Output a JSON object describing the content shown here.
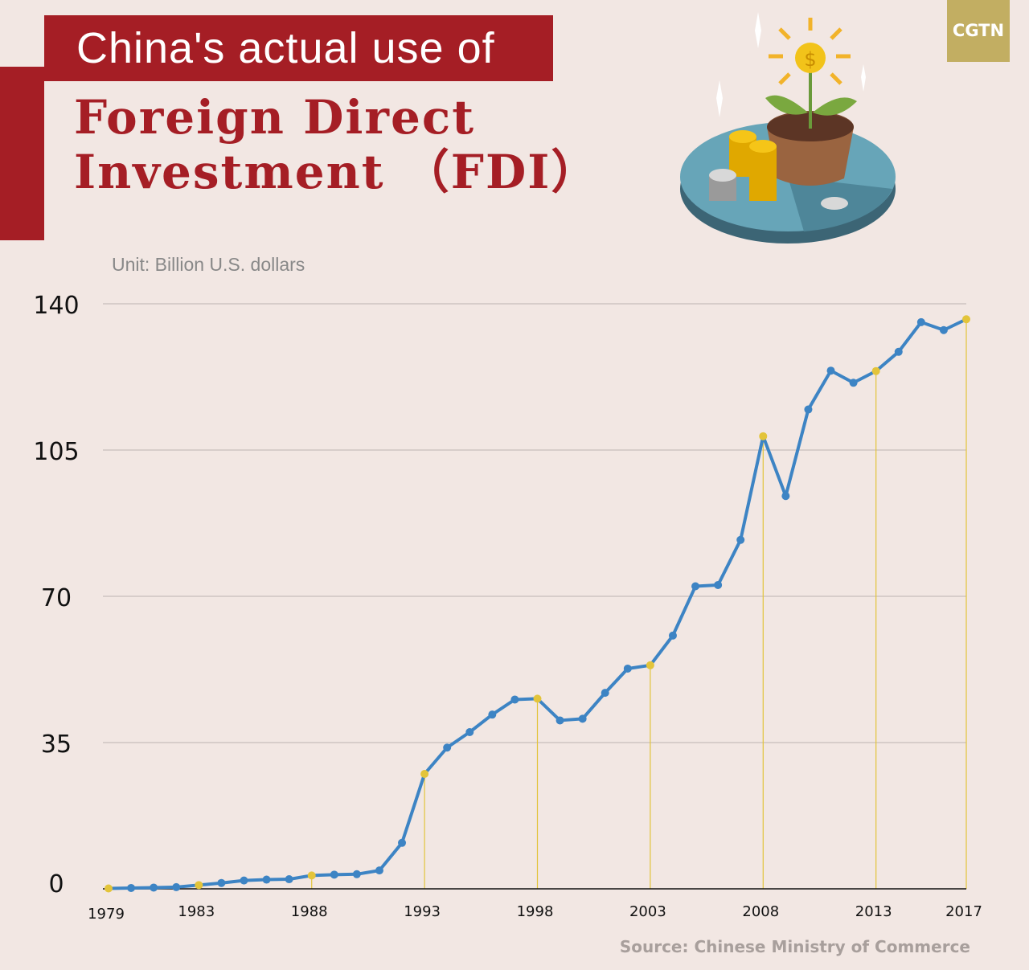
{
  "header": {
    "line1": "China's actual use of",
    "line2": "Foreign Direct",
    "line3": "Investment （FDI）",
    "logo": "CGTN",
    "unit": "Unit: Billion U.S. dollars",
    "source": "Source: Chinese Ministry of Commerce"
  },
  "colors": {
    "line": "#3d84c4",
    "highlight": "#e3c43a",
    "brand": "#a51e25",
    "logo_bg": "#c2ae62"
  },
  "chart_data": {
    "type": "line",
    "title": "China's actual use of Foreign Direct Investment (FDI)",
    "ylabel": "Unit: Billion U.S. dollars",
    "ylim": [
      0,
      140
    ],
    "yticks": [
      0,
      35,
      70,
      105,
      140
    ],
    "xticks": [
      1979,
      1983,
      1988,
      1993,
      1998,
      2003,
      2008,
      2013,
      2017
    ],
    "grid": true,
    "x": [
      1979,
      1980,
      1981,
      1982,
      1983,
      1984,
      1985,
      1986,
      1987,
      1988,
      1989,
      1990,
      1991,
      1992,
      1993,
      1994,
      1995,
      1996,
      1997,
      1998,
      1999,
      2000,
      2001,
      2002,
      2003,
      2004,
      2005,
      2006,
      2007,
      2008,
      2009,
      2010,
      2011,
      2012,
      2013,
      2014,
      2015,
      2016,
      2017
    ],
    "values": [
      0.1,
      0.2,
      0.3,
      0.4,
      0.9,
      1.4,
      2.0,
      2.2,
      2.3,
      3.2,
      3.4,
      3.5,
      4.4,
      11.0,
      27.5,
      33.8,
      37.5,
      41.7,
      45.3,
      45.5,
      40.3,
      40.7,
      46.9,
      52.7,
      53.5,
      60.6,
      72.4,
      72.7,
      83.5,
      108.3,
      94.0,
      114.7,
      124.0,
      121.1,
      123.9,
      128.5,
      135.6,
      133.7,
      136.3
    ],
    "highlighted_years": [
      1979,
      1983,
      1988,
      1993,
      1998,
      2003,
      2008,
      2013,
      2017
    ]
  }
}
